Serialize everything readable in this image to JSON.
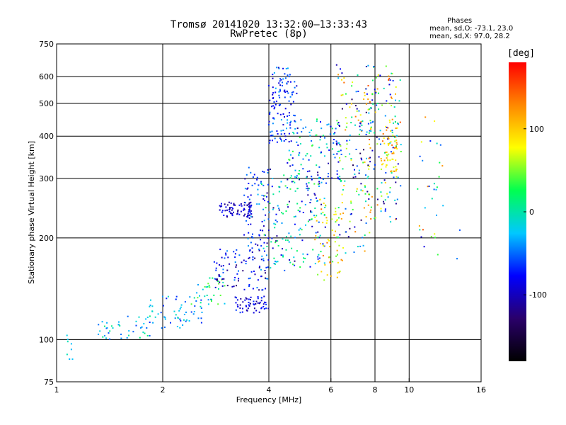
{
  "header": {
    "title": "Tromsø 20141020 13:32:00–13:33:43",
    "subtitle": "RwPretec (8p)"
  },
  "phase_box": {
    "title": "Phases",
    "o_line": "mean, sd,O: -73.1, 23.0",
    "x_line": "mean, sd,X:  97.0, 28.2"
  },
  "colorbar": {
    "unit": "[deg]",
    "range": [
      -180,
      180
    ],
    "ticks": [
      100,
      0,
      -100
    ],
    "colors": [
      "#000000",
      "#2a006a",
      "#0000ff",
      "#00c8ff",
      "#00ff50",
      "#ffff00",
      "#ff8800",
      "#ff0000"
    ]
  },
  "chart_data": {
    "type": "scatter",
    "xlabel": "Frequency [MHz]",
    "ylabel": "Stationary phase Virtual Height [km]",
    "x_scale": "log",
    "y_scale": "log",
    "xlim": [
      1,
      16
    ],
    "ylim": [
      75,
      750
    ],
    "x_ticks": [
      1,
      2,
      4,
      6,
      8,
      10,
      16
    ],
    "y_ticks": [
      75,
      100,
      200,
      300,
      400,
      500,
      600,
      750
    ],
    "grid": true,
    "clusters": [
      {
        "f": [
          1.05,
          1.12
        ],
        "h": [
          85,
          105
        ],
        "phase": [
          -40,
          10
        ],
        "n": 8
      },
      {
        "f": [
          1.3,
          1.9
        ],
        "h": [
          100,
          118
        ],
        "phase": [
          -60,
          20
        ],
        "n": 40
      },
      {
        "f": [
          1.8,
          2.6
        ],
        "h": [
          108,
          135
        ],
        "phase": [
          -70,
          0
        ],
        "n": 60
      },
      {
        "f": [
          2.4,
          3.0
        ],
        "h": [
          125,
          155
        ],
        "phase": [
          -40,
          60
        ],
        "n": 35
      },
      {
        "f": [
          2.8,
          4.0
        ],
        "h": [
          140,
          185
        ],
        "phase": [
          -130,
          -40
        ],
        "n": 90
      },
      {
        "f": [
          3.2,
          4.0
        ],
        "h": [
          120,
          135
        ],
        "phase": [
          -120,
          -60
        ],
        "n": 60
      },
      {
        "f": [
          2.9,
          3.6
        ],
        "h": [
          230,
          255
        ],
        "phase": [
          -130,
          -70
        ],
        "n": 70
      },
      {
        "f": [
          3.4,
          4.0
        ],
        "h": [
          180,
          330
        ],
        "phase": [
          -110,
          -30
        ],
        "n": 70
      },
      {
        "f": [
          3.8,
          5.8
        ],
        "h": [
          160,
          320
        ],
        "phase": [
          -120,
          40
        ],
        "n": 180
      },
      {
        "f": [
          4.0,
          4.8
        ],
        "h": [
          380,
          640
        ],
        "phase": [
          -100,
          -30
        ],
        "n": 120
      },
      {
        "f": [
          4.5,
          6.5
        ],
        "h": [
          280,
          450
        ],
        "phase": [
          -110,
          40
        ],
        "n": 120
      },
      {
        "f": [
          5.4,
          6.5
        ],
        "h": [
          150,
          260
        ],
        "phase": [
          40,
          140
        ],
        "n": 60
      },
      {
        "f": [
          6.2,
          7.8
        ],
        "h": [
          180,
          650
        ],
        "phase": [
          -140,
          140
        ],
        "n": 150
      },
      {
        "f": [
          7.5,
          9.5
        ],
        "h": [
          220,
          650
        ],
        "phase": [
          -120,
          150
        ],
        "n": 160
      },
      {
        "f": [
          8.3,
          9.3
        ],
        "h": [
          300,
          440
        ],
        "phase": [
          60,
          140
        ],
        "n": 50
      },
      {
        "f": [
          10.5,
          12.5
        ],
        "h": [
          200,
          460
        ],
        "phase": [
          -100,
          150
        ],
        "n": 25
      },
      {
        "f": [
          10.5,
          14.5
        ],
        "h": [
          140,
          300
        ],
        "phase": [
          -110,
          50
        ],
        "n": 8
      }
    ]
  }
}
